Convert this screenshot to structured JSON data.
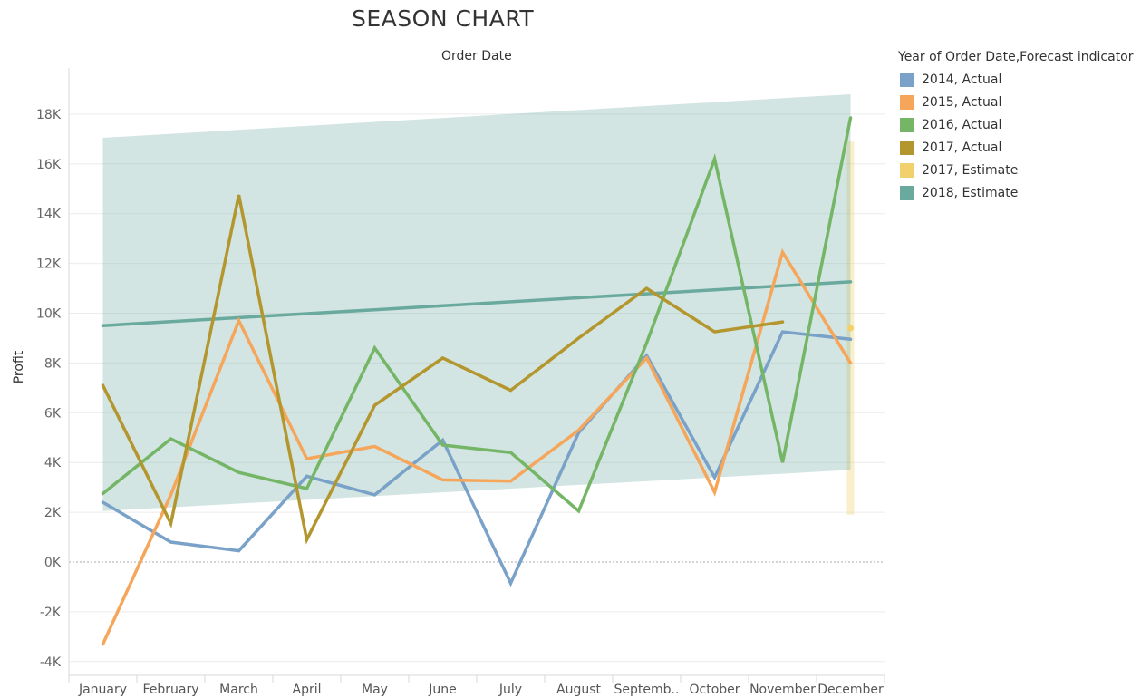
{
  "chart_data": {
    "type": "line",
    "title": "SEASON CHART",
    "xlabel": "Order Date",
    "ylabel": "Profit",
    "categories": [
      "January",
      "February",
      "March",
      "April",
      "May",
      "June",
      "July",
      "August",
      "Septemb..",
      "October",
      "November",
      "December"
    ],
    "yticks": [
      "-4K",
      "-2K",
      "0K",
      "2K",
      "4K",
      "6K",
      "8K",
      "10K",
      "12K",
      "14K",
      "16K",
      "18K"
    ],
    "ylim": [
      -4000,
      18000
    ],
    "grid": true,
    "legend_position": "right",
    "legend_title": "Year of Order Date,Forecast indicator",
    "series": [
      {
        "name": "2014, Actual",
        "color": "#7aa2c8",
        "values": [
          2400,
          800,
          450,
          3450,
          2700,
          4900,
          -850,
          5200,
          8300,
          3400,
          9250,
          8950
        ]
      },
      {
        "name": "2015, Actual",
        "color": "#f6a65a",
        "values": [
          -3300,
          2700,
          9700,
          4150,
          4650,
          3300,
          3250,
          5300,
          8200,
          2800,
          12450,
          8000
        ]
      },
      {
        "name": "2016, Actual",
        "color": "#74b566",
        "values": [
          2750,
          4950,
          3600,
          2950,
          8600,
          4700,
          4400,
          2050,
          8800,
          16200,
          4000,
          17850
        ]
      },
      {
        "name": "2017, Actual",
        "color": "#b4962f",
        "values": [
          7100,
          1550,
          14750,
          900,
          6300,
          8200,
          6900,
          9000,
          11000,
          9250,
          9650,
          null
        ]
      },
      {
        "name": "2017, Estimate",
        "color": "#f2d06b",
        "values": [
          null,
          null,
          null,
          null,
          null,
          null,
          null,
          null,
          null,
          null,
          null,
          9400
        ],
        "band": {
          "low": 1900,
          "high": 16900
        }
      },
      {
        "name": "2018, Estimate",
        "color": "#6aaa9e",
        "values": [
          9500,
          9660,
          9820,
          9980,
          10140,
          10300,
          10460,
          10620,
          10780,
          10940,
          11100,
          11260
        ],
        "band": {
          "low": [
            2050,
            3700
          ],
          "high": [
            17050,
            18800
          ]
        }
      }
    ]
  }
}
